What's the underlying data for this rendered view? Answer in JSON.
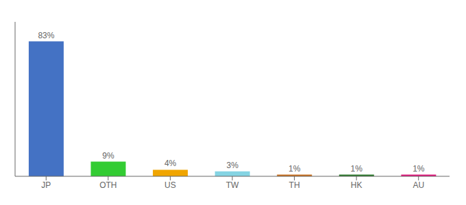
{
  "chart_data": {
    "type": "bar",
    "categories": [
      "JP",
      "OTH",
      "US",
      "TW",
      "TH",
      "HK",
      "AU"
    ],
    "values": [
      83,
      9,
      4,
      3,
      1,
      1,
      1
    ],
    "value_labels": [
      "83%",
      "9%",
      "4%",
      "3%",
      "1%",
      "1%",
      "1%"
    ],
    "colors": [
      "#4472c4",
      "#33cc33",
      "#f0a500",
      "#85d4e3",
      "#c87020",
      "#2d7a2d",
      "#e0197d"
    ],
    "ylim": [
      0,
      95
    ],
    "data_labels": true,
    "tick_labels": "x",
    "grid": false
  }
}
